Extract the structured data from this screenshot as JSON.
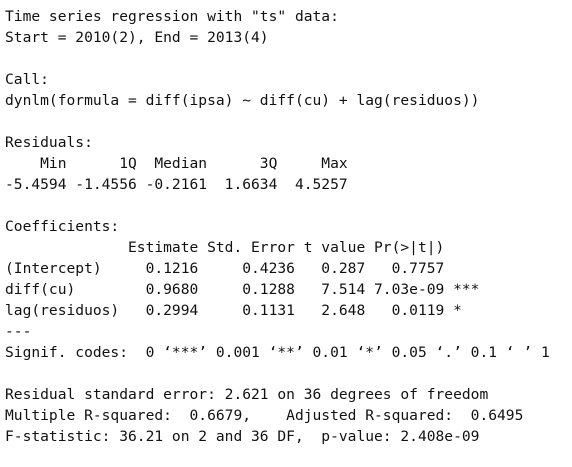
{
  "header": [
    "Time series regression with \"ts\" data:",
    "Start = 2010(2), End = 2013(4)"
  ],
  "call": {
    "label": "Call:",
    "formula": "dynlm(formula = diff(ipsa) ~ diff(cu) + lag(residuos))"
  },
  "residuals": {
    "label": "Residuals:",
    "header": "    Min      1Q  Median      3Q     Max",
    "values": "-5.4594 -1.4556 -0.2161  1.6634  4.5257"
  },
  "coefficients": {
    "label": "Coefficients:",
    "header": "              Estimate Std. Error t value Pr(>|t|)",
    "rows": [
      "(Intercept)     0.1216     0.4236   0.287   0.7757",
      "diff(cu)        0.9680     0.1288   7.514 7.03e-09 ***",
      "lag(residuos)   0.2994     0.1131   2.648   0.0119 *"
    ],
    "separator": "---",
    "signif": "Signif. codes:  0 ‘***’ 0.001 ‘**’ 0.01 ‘*’ 0.05 ‘.’ 0.1 ‘ ’ 1"
  },
  "summary": [
    "Residual standard error: 2.621 on 36 degrees of freedom",
    "Multiple R-squared:  0.6679,    Adjusted R-squared:  0.6495",
    "F-statistic: 36.21 on 2 and 36 DF,  p-value: 2.408e-09"
  ]
}
